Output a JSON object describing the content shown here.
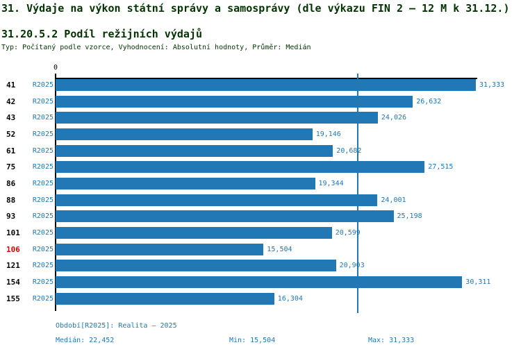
{
  "colors": {
    "bar": "#2277b5",
    "blue-text": "#1f77b4",
    "green": "#003300",
    "red": "#dd0000",
    "axis": "#000000"
  },
  "header": {
    "title": "31. Výdaje na výkon státní správy a samosprávy (dle výkazu FIN 2 – 12 M k 31.12.)",
    "subtitle": "31.20.5.2 Podíl režijních výdajů",
    "meta": "Typ: Počítaný podle vzorce, Vyhodnocení: Absolutní hodnoty, Průměr: Medián"
  },
  "chart_data": {
    "type": "bar",
    "orientation": "horizontal",
    "title": "31.20.5.2 Podíl režijních výdajů",
    "series_label": "R2025",
    "categories": [
      "41",
      "42",
      "43",
      "52",
      "61",
      "75",
      "86",
      "88",
      "93",
      "101",
      "106",
      "121",
      "154",
      "155"
    ],
    "values": [
      31333,
      26632,
      24026,
      19146,
      20682,
      27515,
      19344,
      24001,
      25198,
      20599,
      15504,
      20903,
      30311,
      16304
    ],
    "value_labels": [
      "31,333",
      "26,632",
      "24,026",
      "19,146",
      "20,682",
      "27,515",
      "19,344",
      "24,001",
      "25,198",
      "20,599",
      "15,504",
      "20,903",
      "30,311",
      "16,304"
    ],
    "highlighted_category": "106",
    "xlim": [
      0,
      31333
    ],
    "x_axis_tick_label": "0",
    "median_value": 22452,
    "median_line": true,
    "grid": false,
    "legend": false
  },
  "footer": {
    "period": "Období[R2025]: Realita – 2025",
    "median": "Medián: 22,452",
    "min": "Min: 15,504",
    "max": "Max: 31,333"
  }
}
